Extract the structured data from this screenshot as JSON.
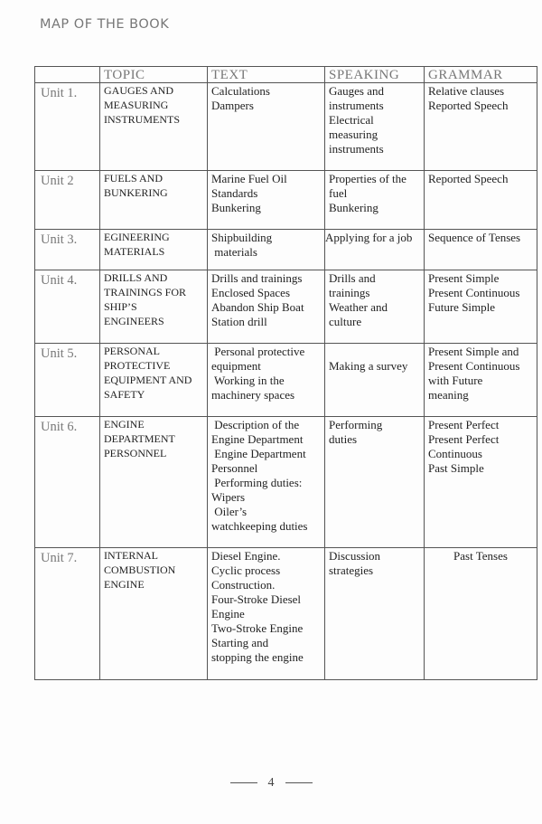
{
  "header": {
    "title": "MAP OF THE BOOK"
  },
  "table": {
    "columns": [
      "",
      "TOPIC",
      "TEXT",
      "SPEAKING",
      "GRAMMAR"
    ],
    "rows": [
      {
        "unit": "Unit 1.",
        "topic": [
          "GAUGES AND",
          "MEASURING",
          "INSTRUMENTS"
        ],
        "text": [
          "Calculations",
          "Dampers"
        ],
        "speaking": [
          "Gauges and",
          "instruments",
          "Electrical",
          "measuring",
          "instruments"
        ],
        "grammar": [
          "Relative clauses",
          "Reported Speech"
        ]
      },
      {
        "unit": "Unit 2",
        "topic": [
          "FUELS AND",
          "BUNKERING"
        ],
        "text": [
          "Marine Fuel Oil",
          "Standards",
          "Bunkering"
        ],
        "speaking": [
          "Properties of the",
          "fuel",
          "Bunkering"
        ],
        "grammar": [
          "Reported Speech"
        ]
      },
      {
        "unit": "Unit 3.",
        "topic": [
          "EGINEERING",
          "MATERIALS"
        ],
        "text": [
          "Shipbuilding",
          " materials"
        ],
        "speaking": [
          "Applying for a job"
        ],
        "grammar": [
          "Sequence of Tenses"
        ]
      },
      {
        "unit": "Unit 4.",
        "topic": [
          "DRILLS AND",
          "TRAININGS FOR",
          "SHIP’S",
          "ENGINEERS"
        ],
        "text": [
          "Drills and trainings",
          "Enclosed Spaces",
          "Abandon Ship Boat",
          "Station drill"
        ],
        "speaking": [
          "Drills and",
          "trainings",
          "Weather and",
          "culture"
        ],
        "grammar": [
          "Present Simple",
          "Present Continuous",
          "Future Simple"
        ]
      },
      {
        "unit": "Unit 5.",
        "topic": [
          "PERSONAL",
          "PROTECTIVE",
          "EQUIPMENT AND",
          "SAFETY"
        ],
        "text": [
          " Personal protective",
          "equipment",
          " Working in the",
          "machinery spaces"
        ],
        "speaking": [
          "",
          "Making a survey"
        ],
        "grammar": [
          "Present Simple and",
          "Present Continuous",
          "with Future",
          "meaning"
        ]
      },
      {
        "unit": "Unit 6.",
        "topic": [
          "ENGINE",
          "DEPARTMENT",
          "PERSONNEL"
        ],
        "text": [
          " Description of the",
          "Engine Department",
          " Engine Department",
          "Personnel",
          " Performing duties:",
          "Wipers",
          " Oiler’s",
          "watchkeeping duties"
        ],
        "speaking": [
          "Performing",
          "duties"
        ],
        "grammar": [
          "Present Perfect",
          "Present Perfect",
          "Continuous",
          "Past Simple"
        ]
      },
      {
        "unit": "Unit 7.",
        "topic": [
          "INTERNAL",
          "COMBUSTION",
          "ENGINE"
        ],
        "text": [
          "Diesel Engine.",
          "Cyclic process",
          "Construction.",
          "Four-Stroke Diesel",
          "Engine",
          "Two-Stroke Engine",
          "Starting and",
          "stopping the engine"
        ],
        "speaking": [
          "Discussion",
          "strategies"
        ],
        "grammar": [
          "Past Tenses"
        ]
      }
    ]
  },
  "footer": {
    "page_number": "4"
  }
}
